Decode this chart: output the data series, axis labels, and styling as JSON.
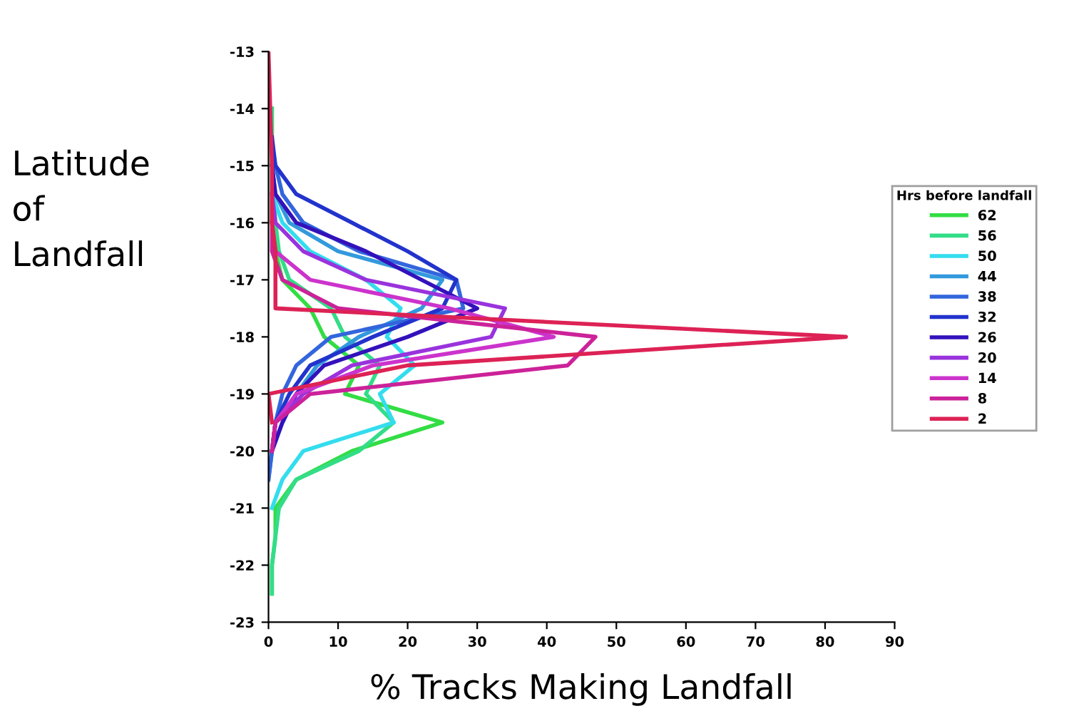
{
  "chart_data": {
    "type": "line",
    "xlabel": "% Tracks Making Landfall",
    "ylabel": "Latitude\nof\nLandfall",
    "legend_title": "Hrs before landfall",
    "legend": "right",
    "grid": false,
    "line_style": "solid",
    "marker": "none",
    "xlim": [
      0,
      90
    ],
    "xticks": [
      0,
      10,
      20,
      30,
      40,
      50,
      60,
      70,
      80,
      90
    ],
    "ylim": [
      -23,
      -13
    ],
    "yticks": [
      -13,
      -14,
      -15,
      -16,
      -17,
      -18,
      -19,
      -20,
      -21,
      -22,
      -23
    ],
    "series": [
      {
        "name": "62",
        "color": "#33dd44",
        "x": [
          0.5,
          0.5,
          0.5,
          1,
          2,
          6,
          8,
          13,
          11,
          25,
          12,
          4,
          1,
          1,
          0.5,
          0.5
        ],
        "values": [
          -14,
          -15,
          -16,
          -16.5,
          -17,
          -17.5,
          -18,
          -18.5,
          -19,
          -19.5,
          -20,
          -20.5,
          -21,
          -21.5,
          -22,
          -22.5
        ]
      },
      {
        "name": "56",
        "color": "#33dd88",
        "x": [
          0.5,
          0.5,
          1,
          1.5,
          3,
          9,
          11,
          16,
          14,
          18,
          13,
          4,
          1.5,
          1,
          0.5,
          0.5
        ],
        "values": [
          -14,
          -15,
          -16,
          -16.5,
          -17,
          -17.5,
          -18,
          -18.5,
          -19,
          -19.5,
          -20,
          -20.5,
          -21,
          -21.5,
          -22,
          -22.5
        ]
      },
      {
        "name": "50",
        "color": "#33ddee",
        "x": [
          0.5,
          0.5,
          2,
          6,
          14,
          19,
          17,
          21,
          16,
          18,
          5,
          2,
          0.5
        ],
        "values": [
          -15,
          -15.5,
          -16,
          -16.5,
          -17,
          -17.5,
          -18,
          -18.5,
          -19,
          -19.5,
          -20,
          -20.5,
          -21
        ]
      },
      {
        "name": "44",
        "color": "#3399dd",
        "x": [
          0.5,
          1,
          3,
          10,
          25,
          22,
          13,
          7,
          4,
          2,
          0.5,
          0
        ],
        "values": [
          -15,
          -15.5,
          -16,
          -16.5,
          -17,
          -17.5,
          -18,
          -18.5,
          -19,
          -19.5,
          -20,
          -20.5
        ]
      },
      {
        "name": "38",
        "color": "#3366dd",
        "x": [
          1,
          2,
          5,
          13,
          27,
          28,
          9,
          4,
          2,
          1,
          0.5,
          0
        ],
        "values": [
          -15,
          -15.5,
          -16,
          -16.5,
          -17,
          -17.5,
          -18,
          -18.5,
          -19,
          -19.5,
          -20,
          -20.5
        ]
      },
      {
        "name": "32",
        "color": "#2233cc",
        "x": [
          0.5,
          1,
          4,
          12,
          20,
          27,
          25,
          15,
          6,
          3,
          1,
          0.5
        ],
        "values": [
          -14.5,
          -15,
          -15.5,
          -16,
          -16.5,
          -17,
          -17.5,
          -18,
          -18.5,
          -19,
          -19.5,
          -20
        ]
      },
      {
        "name": "26",
        "color": "#3311bb",
        "x": [
          0.5,
          1,
          4,
          14,
          22,
          30,
          20,
          8,
          4,
          2,
          0.5
        ],
        "values": [
          -15,
          -15.5,
          -16,
          -16.5,
          -17,
          -17.5,
          -18,
          -18.5,
          -19,
          -19.5,
          -20
        ]
      },
      {
        "name": "20",
        "color": "#9933dd",
        "x": [
          0.5,
          1,
          5,
          14,
          34,
          32,
          12,
          5,
          1,
          0.5
        ],
        "values": [
          -15.5,
          -16,
          -16.5,
          -17,
          -17.5,
          -18,
          -18.5,
          -19,
          -19.5,
          -20
        ]
      },
      {
        "name": "14",
        "color": "#cc33cc",
        "x": [
          0.5,
          0.5,
          1,
          6,
          26,
          41,
          15,
          4,
          1,
          0.5
        ],
        "values": [
          -15.5,
          -16,
          -16.5,
          -17,
          -17.5,
          -18,
          -18.5,
          -19,
          -19.5,
          -20
        ]
      },
      {
        "name": "8",
        "color": "#cc2299",
        "x": [
          0.5,
          0.5,
          2,
          10,
          47,
          43,
          6,
          1,
          0.5
        ],
        "values": [
          -16,
          -16.5,
          -17,
          -17.5,
          -18,
          -18.5,
          -19,
          -19.5,
          -20
        ]
      },
      {
        "name": "2",
        "color": "#dd2255",
        "x": [
          0,
          0.5,
          0.5,
          1,
          1,
          1,
          83,
          20,
          0,
          0.5
        ],
        "values": [
          -13,
          -15,
          -16,
          -16.5,
          -17,
          -17.5,
          -18,
          -18.5,
          -19,
          -19.5
        ]
      }
    ]
  }
}
